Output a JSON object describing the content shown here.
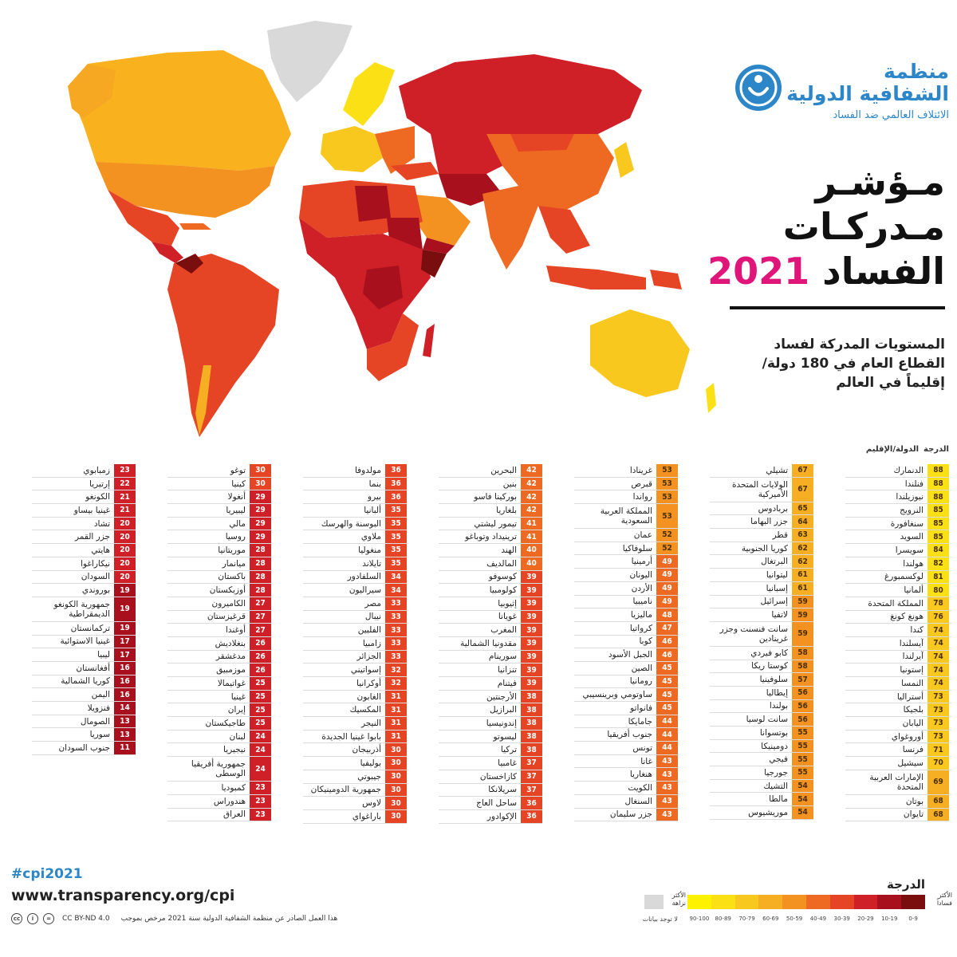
{
  "logo": {
    "name_line1": "منظمة",
    "name_line2": "الشفافية الدولية",
    "tagline": "الائتلاف العالمي ضد الفساد",
    "accent_color": "#2c86c7",
    "icon": "torch-figure-icon"
  },
  "title": {
    "line1": "مـؤشـر",
    "line2": "مـدركـات",
    "line3_word": "الفساد",
    "year": "2021",
    "year_color": "#e0157a"
  },
  "subtitle": {
    "line1": "المستويات المدركة لفساد",
    "line2": "القطاع العام في 180 دولة/",
    "line3": "إقليماً في العالم"
  },
  "table": {
    "header_score": "الدرجة",
    "header_country": "الدولة/الإقليم",
    "columns": [
      [
        {
          "name": "الدنمارك",
          "score": "88"
        },
        {
          "name": "فنلندا",
          "score": "88"
        },
        {
          "name": "نيوزيلندا",
          "score": "88"
        },
        {
          "name": "النرويج",
          "score": "85"
        },
        {
          "name": "سنغافورة",
          "score": "85"
        },
        {
          "name": "السويد",
          "score": "85"
        },
        {
          "name": "سويسرا",
          "score": "84"
        },
        {
          "name": "هولندا",
          "score": "82"
        },
        {
          "name": "لوكسمبورغ",
          "score": "81"
        },
        {
          "name": "ألمانيا",
          "score": "80"
        },
        {
          "name": "المملكة المتحدة",
          "score": "78"
        },
        {
          "name": "هونغ كونغ",
          "score": "76"
        },
        {
          "name": "كندا",
          "score": "74"
        },
        {
          "name": "آيسلندا",
          "score": "74"
        },
        {
          "name": "آيرلندا",
          "score": "74"
        },
        {
          "name": "إستونيا",
          "score": "74"
        },
        {
          "name": "النمسا",
          "score": "74"
        },
        {
          "name": "أستراليا",
          "score": "73"
        },
        {
          "name": "بلجيكا",
          "score": "73"
        },
        {
          "name": "اليابان",
          "score": "73"
        },
        {
          "name": "أوروغواي",
          "score": "73"
        },
        {
          "name": "فرنسا",
          "score": "71"
        },
        {
          "name": "سيشيل",
          "score": "70"
        },
        {
          "name": "الإمارات العربية المتحدة",
          "score": "69",
          "tall": true
        },
        {
          "name": "بوتان",
          "score": "68"
        },
        {
          "name": "تايوان",
          "score": "68"
        }
      ],
      [
        {
          "name": "تشيلي",
          "score": "67"
        },
        {
          "name": "الولايات المتحدة الأميركية",
          "score": "67",
          "tall": true
        },
        {
          "name": "بربادوس",
          "score": "65"
        },
        {
          "name": "جزر البهاما",
          "score": "64"
        },
        {
          "name": "قطر",
          "score": "63"
        },
        {
          "name": "كوريا الجنوبية",
          "score": "62"
        },
        {
          "name": "البرتغال",
          "score": "62"
        },
        {
          "name": "ليتوانيا",
          "score": "61"
        },
        {
          "name": "إسبانيا",
          "score": "61"
        },
        {
          "name": "إسرائيل",
          "score": "59"
        },
        {
          "name": "لاتفيا",
          "score": "59"
        },
        {
          "name": "سانت فنسنت وجزر غرينادين",
          "score": "59",
          "tall": true
        },
        {
          "name": "كابو فيردي",
          "score": "58"
        },
        {
          "name": "كوستا ريكا",
          "score": "58"
        },
        {
          "name": "سلوفينيا",
          "score": "57"
        },
        {
          "name": "إيطاليا",
          "score": "56"
        },
        {
          "name": "بولندا",
          "score": "56"
        },
        {
          "name": "سانت لوسيا",
          "score": "56"
        },
        {
          "name": "بوتسوانا",
          "score": "55"
        },
        {
          "name": "دومينيكا",
          "score": "55"
        },
        {
          "name": "فيجي",
          "score": "55"
        },
        {
          "name": "جورجيا",
          "score": "55"
        },
        {
          "name": "التشيك",
          "score": "54"
        },
        {
          "name": "مالطا",
          "score": "54"
        },
        {
          "name": "موريشيوس",
          "score": "54"
        }
      ],
      [
        {
          "name": "غرينادا",
          "score": "53"
        },
        {
          "name": "قبرص",
          "score": "53"
        },
        {
          "name": "رواندا",
          "score": "53"
        },
        {
          "name": "المملكة العربية السعودية",
          "score": "53",
          "tall": true
        },
        {
          "name": "عمان",
          "score": "52"
        },
        {
          "name": "سلوفاكيا",
          "score": "52"
        },
        {
          "name": "أرمينيا",
          "score": "49"
        },
        {
          "name": "اليونان",
          "score": "49"
        },
        {
          "name": "الأردن",
          "score": "49"
        },
        {
          "name": "ناميبيا",
          "score": "49"
        },
        {
          "name": "ماليزيا",
          "score": "48"
        },
        {
          "name": "كرواتيا",
          "score": "47"
        },
        {
          "name": "كوبا",
          "score": "46"
        },
        {
          "name": "الجبل الأسود",
          "score": "46"
        },
        {
          "name": "الصين",
          "score": "45"
        },
        {
          "name": "رومانيا",
          "score": "45"
        },
        {
          "name": "ساوتومي وبرينسيبي",
          "score": "45"
        },
        {
          "name": "فانواتو",
          "score": "45"
        },
        {
          "name": "جامايكا",
          "score": "44"
        },
        {
          "name": "جنوب أفريقيا",
          "score": "44"
        },
        {
          "name": "تونس",
          "score": "44"
        },
        {
          "name": "غانا",
          "score": "43"
        },
        {
          "name": "هنغاريا",
          "score": "43"
        },
        {
          "name": "الكويت",
          "score": "43"
        },
        {
          "name": "السنغال",
          "score": "43"
        },
        {
          "name": "جزر سليمان",
          "score": "43"
        }
      ],
      [
        {
          "name": "البحرين",
          "score": "42"
        },
        {
          "name": "بنين",
          "score": "42"
        },
        {
          "name": "بوركينا فاسو",
          "score": "42"
        },
        {
          "name": "بلغاريا",
          "score": "42"
        },
        {
          "name": "تيمور ليشتي",
          "score": "41"
        },
        {
          "name": "ترينيداد وتوباغو",
          "score": "41"
        },
        {
          "name": "الهند",
          "score": "40"
        },
        {
          "name": "المالديف",
          "score": "40"
        },
        {
          "name": "كوسوفو",
          "score": "39"
        },
        {
          "name": "كولومبيا",
          "score": "39"
        },
        {
          "name": "إثيوبيا",
          "score": "39"
        },
        {
          "name": "غويانا",
          "score": "39"
        },
        {
          "name": "المغرب",
          "score": "39"
        },
        {
          "name": "مقدونيا الشمالية",
          "score": "39"
        },
        {
          "name": "سورينام",
          "score": "39"
        },
        {
          "name": "تنزانيا",
          "score": "39"
        },
        {
          "name": "فيتنام",
          "score": "39"
        },
        {
          "name": "الأرجنتين",
          "score": "38"
        },
        {
          "name": "البرازيل",
          "score": "38"
        },
        {
          "name": "إندونيسيا",
          "score": "38"
        },
        {
          "name": "ليسوتو",
          "score": "38"
        },
        {
          "name": "تركيا",
          "score": "38"
        },
        {
          "name": "غامبيا",
          "score": "37"
        },
        {
          "name": "كازاخستان",
          "score": "37"
        },
        {
          "name": "سريلانكا",
          "score": "37"
        },
        {
          "name": "ساحل العاج",
          "score": "36"
        },
        {
          "name": "الإكوادور",
          "score": "36"
        }
      ],
      [
        {
          "name": "مولدوفا",
          "score": "36"
        },
        {
          "name": "بنما",
          "score": "36"
        },
        {
          "name": "بيرو",
          "score": "36"
        },
        {
          "name": "ألبانيا",
          "score": "35"
        },
        {
          "name": "البوسنة والهرسك",
          "score": "35"
        },
        {
          "name": "ملاوي",
          "score": "35"
        },
        {
          "name": "منغوليا",
          "score": "35"
        },
        {
          "name": "تايلاند",
          "score": "35"
        },
        {
          "name": "السلفادور",
          "score": "34"
        },
        {
          "name": "سيراليون",
          "score": "34"
        },
        {
          "name": "مصر",
          "score": "33"
        },
        {
          "name": "نيبال",
          "score": "33"
        },
        {
          "name": "الفلبين",
          "score": "33"
        },
        {
          "name": "زامبيا",
          "score": "33"
        },
        {
          "name": "الجزائر",
          "score": "33"
        },
        {
          "name": "إسواتيني",
          "score": "32"
        },
        {
          "name": "أوكرانيا",
          "score": "32"
        },
        {
          "name": "الغابون",
          "score": "31"
        },
        {
          "name": "المكسيك",
          "score": "31"
        },
        {
          "name": "النيجر",
          "score": "31"
        },
        {
          "name": "بابوا غينيا الجديدة",
          "score": "31"
        },
        {
          "name": "أذربيجان",
          "score": "30"
        },
        {
          "name": "بوليفيا",
          "score": "30"
        },
        {
          "name": "جيبوتي",
          "score": "30"
        },
        {
          "name": "جمهورية الدومينيكان",
          "score": "30"
        },
        {
          "name": "لاوس",
          "score": "30"
        },
        {
          "name": "باراغواي",
          "score": "30"
        }
      ],
      [
        {
          "name": "توغو",
          "score": "30"
        },
        {
          "name": "كينيا",
          "score": "30"
        },
        {
          "name": "أنغولا",
          "score": "29"
        },
        {
          "name": "ليبيريا",
          "score": "29"
        },
        {
          "name": "مالي",
          "score": "29"
        },
        {
          "name": "روسيا",
          "score": "29"
        },
        {
          "name": "موريتانيا",
          "score": "28"
        },
        {
          "name": "ميانمار",
          "score": "28"
        },
        {
          "name": "باكستان",
          "score": "28"
        },
        {
          "name": "أوزبكستان",
          "score": "28"
        },
        {
          "name": "الكاميرون",
          "score": "27"
        },
        {
          "name": "قرغيزستان",
          "score": "27"
        },
        {
          "name": "أوغندا",
          "score": "27"
        },
        {
          "name": "بنغلاديش",
          "score": "26"
        },
        {
          "name": "مدغشقر",
          "score": "26"
        },
        {
          "name": "موزمبيق",
          "score": "26"
        },
        {
          "name": "غواتيمالا",
          "score": "25"
        },
        {
          "name": "غينيا",
          "score": "25"
        },
        {
          "name": "إيران",
          "score": "25"
        },
        {
          "name": "طاجيكستان",
          "score": "25"
        },
        {
          "name": "لبنان",
          "score": "24"
        },
        {
          "name": "نيجيريا",
          "score": "24"
        },
        {
          "name": "جمهورية أفريقيا الوسطى",
          "score": "24",
          "tall": true
        },
        {
          "name": "كمبوديا",
          "score": "23"
        },
        {
          "name": "هندوراس",
          "score": "23"
        },
        {
          "name": "العراق",
          "score": "23"
        }
      ],
      [
        {
          "name": "زمبابوي",
          "score": "23"
        },
        {
          "name": "إرتيريا",
          "score": "22"
        },
        {
          "name": "الكونغو",
          "score": "21"
        },
        {
          "name": "غينيا بيساو",
          "score": "21"
        },
        {
          "name": "تشاد",
          "score": "20"
        },
        {
          "name": "جزر القمر",
          "score": "20"
        },
        {
          "name": "هايتي",
          "score": "20"
        },
        {
          "name": "نيكاراغوا",
          "score": "20"
        },
        {
          "name": "السودان",
          "score": "20"
        },
        {
          "name": "بوروندي",
          "score": "19"
        },
        {
          "name": "جمهورية الكونغو الديمقراطية",
          "score": "19",
          "tall": true
        },
        {
          "name": "تركمانستان",
          "score": "19"
        },
        {
          "name": "غينيا الاستوائية",
          "score": "17"
        },
        {
          "name": "ليبيا",
          "score": "17"
        },
        {
          "name": "أفغانستان",
          "score": "16"
        },
        {
          "name": "كوريا الشمالية",
          "score": "16"
        },
        {
          "name": "اليمن",
          "score": "16"
        },
        {
          "name": "فنزويلا",
          "score": "14"
        },
        {
          "name": "الصومال",
          "score": "13"
        },
        {
          "name": "سوريا",
          "score": "13"
        },
        {
          "name": "جنوب السودان",
          "score": "11"
        }
      ]
    ]
  },
  "footer": {
    "hashtag": "#cpi2021",
    "url": "www.transparency.org/cpi",
    "license_code": "CC BY-ND 4.0",
    "license_text": "هذا العمل الصادر عن منظمة الشفافية الدولية سنة 2021 مرخص بموجب"
  },
  "legend": {
    "title": "الدرجة",
    "most_corrupt": "الأكثر فساداً",
    "least_corrupt": "الأكثر نزاهة",
    "no_data": "لا توجد بيانات",
    "bins": [
      {
        "label": "0-9",
        "color": "#7a0d0d"
      },
      {
        "label": "10-19",
        "color": "#a8101e"
      },
      {
        "label": "20-29",
        "color": "#cf1f27"
      },
      {
        "label": "30-39",
        "color": "#e54524"
      },
      {
        "label": "40-49",
        "color": "#ee6a22"
      },
      {
        "label": "50-59",
        "color": "#f39121"
      },
      {
        "label": "60-69",
        "color": "#f6ae22"
      },
      {
        "label": "70-79",
        "color": "#f9c81e"
      },
      {
        "label": "80-89",
        "color": "#fbe016"
      },
      {
        "label": "90-100",
        "color": "#fff200"
      }
    ],
    "no_data_color": "#d9d9d9"
  }
}
